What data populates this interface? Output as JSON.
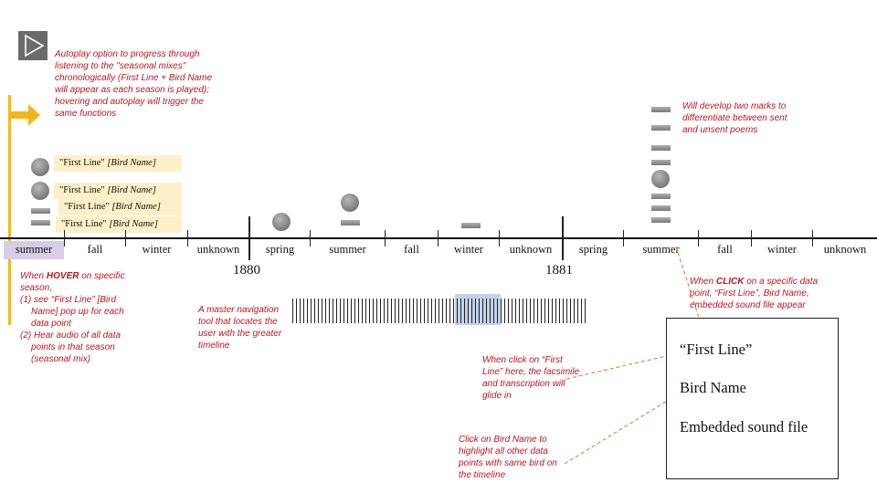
{
  "play_button": {
    "icon": "play-icon"
  },
  "notes": {
    "autoplay": "Autoplay option to progress through listening to the \"seasonal mixes\" chronologically (First Line + Bird Name will appear as each season is played); hovering and autoplay will trigger the same functions",
    "two_marks": "Will develop two marks to differentiate between sent and unsent poems",
    "hover_prefix": "When ",
    "hover_keyword": "HOVER",
    "hover_suffix": " on specific season,",
    "hover_item1": "(1) see “First Line” [Bird Name] pop up for each data point",
    "hover_item2": "(2) Hear audio of all data points in that season (seasonal mix)",
    "master_nav": "A master navigation tool that locates the user with the greater timeline",
    "click_prefix": "When ",
    "click_keyword": "CLICK",
    "click_suffix": " on a specific data point, “First Line”, Bird Name, embedded sound file appear",
    "first_line_click": "When click on “First Line” here, the facsimile and transcription will glide in",
    "bird_click": "Click on Bird Name to highlight all other data points with same bird on the timeline"
  },
  "popups": [
    {
      "first_line": "\"First Line\"",
      "bird": "[Bird Name]"
    },
    {
      "first_line": "\"First Line\"",
      "bird": "[Bird Name]"
    },
    {
      "first_line": "\"First Line\"",
      "bird": "[Bird Name]"
    },
    {
      "first_line": "\"First Line\"",
      "bird": "[Bird Name]"
    }
  ],
  "timeline": {
    "seasons": [
      "summer",
      "fall",
      "winter",
      "unknown",
      "spring",
      "summer",
      "fall",
      "winter",
      "unknown",
      "spring",
      "summer",
      "fall",
      "winter",
      "unknown"
    ],
    "highlighted_index": 0,
    "years": [
      "1880",
      "1881"
    ]
  },
  "detail_box": {
    "first_line": "“First Line”",
    "bird_name": "Bird Name",
    "sound": "Embedded sound file"
  },
  "colors": {
    "accent_yellow": "#f2b61c",
    "highlight_purple": "#d8cde6",
    "popup_bg": "#fdf0c8",
    "note_red": "#c0141c",
    "nav_window": "#c2d2ec"
  }
}
